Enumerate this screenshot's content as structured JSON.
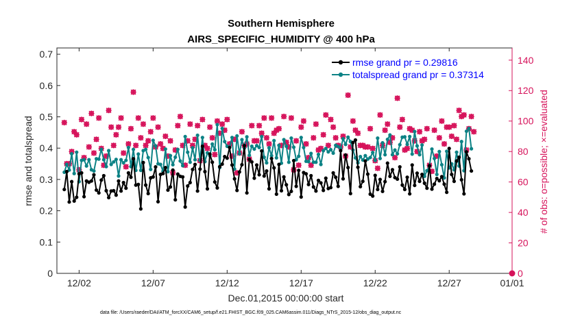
{
  "chart_data": {
    "type": "line",
    "title": "Southern Hemisphere",
    "subtitle": "AIRS_SPECIFIC_HUMIDITY @ 400 hPa",
    "xlabel": "Dec.01,2015 00:00:00 start",
    "ylabel": "rmse and totalspread",
    "ylabel_right": "# of obs: o=possible; ×=evaluated",
    "footnote": "data file: /Users/raeder/DAI/ATM_forcXX/CAM6_setup/f.e21.FHIST_BGC.f09_025.CAM6assim.011/Diags_NTrS_2015-12/obs_diag_output.nc",
    "xlim": [
      0.5,
      31.25
    ],
    "ylim": [
      0,
      0.72
    ],
    "ylim_right": [
      0,
      148
    ],
    "x_ticks": [
      2,
      7,
      12,
      17,
      22,
      27,
      32
    ],
    "x_tick_labels": [
      "12/02",
      "12/07",
      "12/12",
      "12/17",
      "12/22",
      "12/27",
      "01/01"
    ],
    "y_ticks": [
      0,
      0.1,
      0.2,
      0.3,
      0.4,
      0.5,
      0.6,
      0.7
    ],
    "y_tick_labels": [
      "0",
      "0.1",
      "0.2",
      "0.3",
      "0.4",
      "0.5",
      "0.6",
      "0.7"
    ],
    "y2_ticks": [
      0,
      20,
      40,
      60,
      80,
      100,
      120,
      140
    ],
    "y2_tick_labels": [
      "0",
      "20",
      "40",
      "60",
      "80",
      "100",
      "120",
      "140"
    ],
    "legend": {
      "position": "top-right",
      "entries": [
        {
          "label": "rmse grand pr = 0.29816",
          "color": "#000000"
        },
        {
          "label": "totalspread grand pr = 0.37314",
          "color": "#0c8285"
        }
      ]
    },
    "colors": {
      "rmse": "#000000",
      "spread": "#0c8285",
      "obs": "#d6125a"
    },
    "series": [
      {
        "name": "rmse",
        "axis": "left",
        "values": [
          0.268,
          0.325,
          0.228,
          0.293,
          0.231,
          0.243,
          0.318,
          0.321,
          0.245,
          0.295,
          0.291,
          0.295,
          0.315,
          0.266,
          0.257,
          0.298,
          0.312,
          0.264,
          0.242,
          0.263,
          0.264,
          0.25,
          0.295,
          0.263,
          0.29,
          0.272,
          0.321,
          0.307,
          0.366,
          0.282,
          0.284,
          0.206,
          0.354,
          0.282,
          0.255,
          0.305,
          0.308,
          0.34,
          0.229,
          0.316,
          0.319,
          0.338,
          0.266,
          0.276,
          0.33,
          0.235,
          0.317,
          0.31,
          0.308,
          0.212,
          0.279,
          0.29,
          0.332,
          0.348,
          0.263,
          0.333,
          0.406,
          0.325,
          0.27,
          0.381,
          0.355,
          0.292,
          0.273,
          0.341,
          0.349,
          0.373,
          0.368,
          0.402,
          0.346,
          0.302,
          0.265,
          0.324,
          0.347,
          0.408,
          0.257,
          0.364,
          0.356,
          0.304,
          0.346,
          0.315,
          0.391,
          0.311,
          0.327,
          0.27,
          0.367,
          0.337,
          0.253,
          0.348,
          0.264,
          0.308,
          0.283,
          0.252,
          0.262,
          0.36,
          0.278,
          0.329,
          0.244,
          0.322,
          0.318,
          0.284,
          0.312,
          0.276,
          0.263,
          0.297,
          0.289,
          0.265,
          0.304,
          0.271,
          0.274,
          0.321,
          0.307,
          0.278,
          0.392,
          0.302,
          0.378,
          0.338,
          0.255,
          0.418,
          0.426,
          0.339,
          0.277,
          0.294,
          0.359,
          0.317,
          0.253,
          0.247,
          0.313,
          0.268,
          0.3,
          0.262,
          0.293,
          0.352,
          0.31,
          0.331,
          0.306,
          0.301,
          0.34,
          0.282,
          0.268,
          0.307,
          0.254,
          0.346,
          0.281,
          0.32,
          0.294,
          0.316,
          0.288,
          0.272,
          0.344,
          0.269,
          0.285,
          0.303,
          0.296,
          0.309,
          0.285,
          0.259,
          0.399,
          0.316,
          0.294,
          0.359,
          0.371,
          0.299,
          0.254,
          0.388,
          0.366,
          0.327
        ]
      },
      {
        "name": "totalspread",
        "axis": "left",
        "values": [
          0.323,
          0.348,
          0.33,
          0.382,
          0.319,
          0.387,
          0.293,
          0.361,
          0.363,
          0.343,
          0.363,
          0.331,
          0.327,
          0.366,
          0.365,
          0.396,
          0.363,
          0.341,
          0.392,
          0.348,
          0.356,
          0.364,
          0.311,
          0.363,
          0.353,
          0.361,
          0.402,
          0.341,
          0.396,
          0.329,
          0.381,
          0.329,
          0.392,
          0.396,
          0.37,
          0.332,
          0.425,
          0.407,
          0.35,
          0.348,
          0.326,
          0.397,
          0.325,
          0.376,
          0.347,
          0.371,
          0.396,
          0.359,
          0.344,
          0.437,
          0.387,
          0.355,
          0.401,
          0.363,
          0.441,
          0.361,
          0.434,
          0.357,
          0.385,
          0.376,
          0.413,
          0.395,
          0.475,
          0.338,
          0.463,
          0.421,
          0.406,
          0.403,
          0.434,
          0.333,
          0.439,
          0.382,
          0.427,
          0.4,
          0.436,
          0.377,
          0.406,
          0.397,
          0.408,
          0.402,
          0.437,
          0.371,
          0.353,
          0.401,
          0.376,
          0.424,
          0.369,
          0.409,
          0.352,
          0.427,
          0.406,
          0.355,
          0.432,
          0.403,
          0.363,
          0.374,
          0.434,
          0.402,
          0.358,
          0.357,
          0.383,
          0.355,
          0.355,
          0.38,
          0.348,
          0.392,
          0.399,
          0.388,
          0.395,
          0.384,
          0.409,
          0.405,
          0.399,
          0.43,
          0.412,
          0.435,
          0.421,
          0.394,
          0.369,
          0.353,
          0.373,
          0.362,
          0.376,
          0.365,
          0.37,
          0.386,
          0.361,
          0.432,
          0.367,
          0.417,
          0.379,
          0.428,
          0.442,
          0.379,
          0.394,
          0.382,
          0.411,
          0.435,
          0.436,
          0.412,
          0.437,
          0.381,
          0.453,
          0.407,
          0.379,
          0.41,
          0.31,
          0.328,
          0.343,
          0.397,
          0.367,
          0.316,
          0.389,
          0.347,
          0.305,
          0.39,
          0.337,
          0.35,
          0.331,
          0.387,
          0.343,
          0.421,
          0.328,
          0.454,
          0.463,
          0.398
        ]
      },
      {
        "name": "obs_possible",
        "axis": "right",
        "marker": "circle",
        "values": [
          99,
          72,
          72,
          80,
          93,
          91,
          68,
          101,
          76,
          98,
          83,
          105,
          79,
          88,
          102,
          82,
          71,
          77,
          107,
          96,
          84,
          91,
          96,
          102,
          79,
          70,
          85,
          95,
          119,
          84,
          102,
          89,
          98,
          84,
          87,
          93,
          102,
          83,
          96,
          85,
          82,
          90,
          77,
          87,
          66,
          81,
          97,
          103,
          84,
          71,
          87,
          98,
          84,
          88,
          97,
          74,
          101,
          84,
          82,
          96,
          89,
          78,
          100,
          92,
          98,
          94,
          101,
          85,
          77,
          88,
          66,
          79,
          93,
          84,
          85,
          75,
          97,
          87,
          87,
          97,
          92,
          102,
          89,
          85,
          102,
          92,
          94,
          95,
          84,
          103,
          86,
          83,
          102,
          68,
          87,
          71,
          96,
          100,
          85,
          76,
          71,
          89,
          98,
          81,
          82,
          91,
          104,
          84,
          101,
          96,
          89,
          84,
          83,
          90,
          77,
          117,
          83,
          100,
          94,
          92,
          84,
          84,
          83,
          83,
          95,
          82,
          74,
          69,
          104,
          84,
          94,
          98,
          86,
          89,
          76,
          115,
          96,
          101,
          81,
          82,
          95,
          94,
          87,
          80,
          93,
          87,
          88,
          95,
          71,
          67,
          94,
          77,
          89,
          100,
          85,
          96,
          96,
          90,
          97,
          88,
          107,
          103,
          104,
          81,
          95,
          103,
          93
        ]
      },
      {
        "name": "obs_evaluated",
        "axis": "right",
        "marker": "x",
        "values": [
          99,
          72,
          72,
          80,
          93,
          91,
          68,
          101,
          76,
          98,
          83,
          105,
          79,
          88,
          102,
          82,
          71,
          77,
          107,
          96,
          84,
          91,
          96,
          102,
          79,
          70,
          85,
          95,
          119,
          84,
          102,
          89,
          98,
          84,
          87,
          93,
          102,
          83,
          96,
          85,
          82,
          90,
          77,
          87,
          66,
          81,
          97,
          103,
          84,
          71,
          87,
          98,
          84,
          88,
          97,
          74,
          101,
          84,
          82,
          96,
          89,
          78,
          100,
          92,
          98,
          94,
          101,
          85,
          77,
          88,
          66,
          79,
          93,
          84,
          85,
          75,
          97,
          87,
          87,
          97,
          92,
          102,
          89,
          85,
          102,
          92,
          94,
          95,
          84,
          103,
          86,
          83,
          102,
          68,
          87,
          71,
          96,
          100,
          85,
          76,
          71,
          89,
          98,
          81,
          82,
          91,
          104,
          84,
          101,
          96,
          89,
          84,
          83,
          90,
          77,
          117,
          83,
          100,
          94,
          92,
          84,
          84,
          83,
          83,
          95,
          82,
          74,
          69,
          104,
          84,
          94,
          98,
          86,
          89,
          76,
          115,
          96,
          101,
          81,
          82,
          95,
          94,
          87,
          80,
          93,
          87,
          88,
          95,
          71,
          67,
          94,
          77,
          89,
          100,
          85,
          96,
          96,
          90,
          97,
          88,
          107,
          103,
          104,
          81,
          95,
          103,
          93
        ]
      }
    ]
  }
}
